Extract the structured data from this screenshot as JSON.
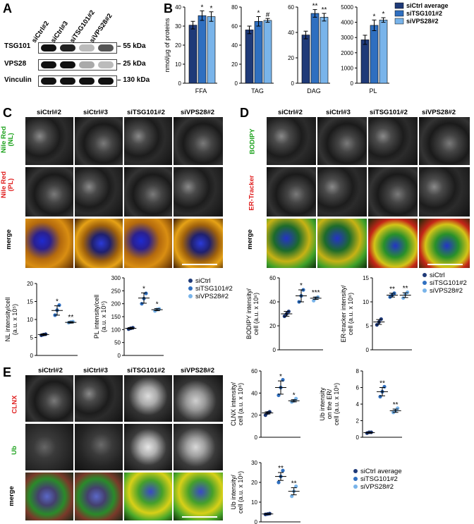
{
  "panels": {
    "A": "A",
    "B": "B",
    "C": "C",
    "D": "D",
    "E": "E"
  },
  "panelA": {
    "lanes": [
      "siCtrl#2",
      "siCtrl#3",
      "siTSG101#2",
      "siVPS28#2"
    ],
    "rows": [
      {
        "protein": "TSG101",
        "marker": "55 kDa",
        "intensity": [
          1.0,
          0.85,
          0.15,
          0.6
        ]
      },
      {
        "protein": "VPS28",
        "marker": "25 kDa",
        "intensity": [
          1.0,
          0.95,
          0.3,
          0.25
        ]
      },
      {
        "protein": "Vinculin",
        "marker": "130 kDa",
        "intensity": [
          1.0,
          1.0,
          1.0,
          1.0
        ]
      }
    ]
  },
  "panelB": {
    "legend": [
      "siCtrl average",
      "siTSG101#2",
      "siVPS28#2"
    ],
    "colors": [
      "#1f3a78",
      "#2f6fc0",
      "#79b4ea"
    ],
    "ylabel": "nmol/µg of proteins"
  },
  "panelC": {
    "columns": [
      "siCtrl#2",
      "siCtrl#3",
      "siTSG101#2",
      "siVPS28#2"
    ],
    "rows": [
      {
        "label1": "Nile Red",
        "label2": "(NL)",
        "color": "#1fa31f"
      },
      {
        "label1": "Nile Red",
        "label2": "(PL)",
        "color": "#e02020"
      },
      {
        "label1": "merge",
        "label2": "",
        "color": "#000000"
      }
    ],
    "legend": [
      "siCtrl",
      "siTSG101#2",
      "siVPS28#2"
    ]
  },
  "panelD": {
    "columns": [
      "siCtrl#2",
      "siCtrl#3",
      "siTSG101#2",
      "siVPS28#2"
    ],
    "rows": [
      {
        "label1": "BODIPY",
        "color": "#1fa31f"
      },
      {
        "label1": "ER-Tracker",
        "color": "#e02020"
      },
      {
        "label1": "merge",
        "color": "#000000"
      }
    ],
    "legend": [
      "siCtrl",
      "siTSG101#2",
      "siVPS28#2"
    ]
  },
  "panelE": {
    "columns": [
      "siCtrl#2",
      "siCtrl#3",
      "siTSG101#2",
      "siVPS28#2"
    ],
    "rows": [
      {
        "label1": "CLNX",
        "color": "#e02020"
      },
      {
        "label1": "Ub",
        "color": "#1fa31f"
      },
      {
        "label1": "merge",
        "color": "#000000"
      }
    ],
    "legend": [
      "siCtrl average",
      "siTSG101#2",
      "siVPS28#2"
    ]
  },
  "chart_data": [
    {
      "id": "B-FFA",
      "type": "bar",
      "categories": [
        "FFA"
      ],
      "series": [
        {
          "name": "siCtrl average",
          "values": [
            30.5
          ],
          "err": [
            2
          ]
        },
        {
          "name": "siTSG101#2",
          "values": [
            35.5
          ],
          "err": [
            2.5
          ]
        },
        {
          "name": "siVPS28#2",
          "values": [
            35
          ],
          "err": [
            2.5
          ]
        }
      ],
      "ylim": [
        0,
        40
      ],
      "ticks": [
        0,
        10,
        20,
        30,
        40
      ],
      "ylabel": "nmol/µg of proteins",
      "xlabel": "FFA",
      "sig": [
        "",
        "*",
        "*"
      ]
    },
    {
      "id": "B-TAG",
      "type": "bar",
      "categories": [
        "TAG"
      ],
      "series": [
        {
          "name": "siCtrl average",
          "values": [
            56
          ],
          "err": [
            4
          ]
        },
        {
          "name": "siTSG101#2",
          "values": [
            65
          ],
          "err": [
            5
          ]
        },
        {
          "name": "siVPS28#2",
          "values": [
            66
          ],
          "err": [
            2
          ]
        }
      ],
      "ylim": [
        0,
        80
      ],
      "ticks": [
        0,
        20,
        40,
        60,
        80
      ],
      "xlabel": "TAG",
      "sig": [
        "",
        "*",
        "#"
      ]
    },
    {
      "id": "B-DAG",
      "type": "bar",
      "categories": [
        "DAG"
      ],
      "series": [
        {
          "name": "siCtrl average",
          "values": [
            38
          ],
          "err": [
            3
          ]
        },
        {
          "name": "siTSG101#2",
          "values": [
            55
          ],
          "err": [
            3
          ]
        },
        {
          "name": "siVPS28#2",
          "values": [
            52
          ],
          "err": [
            3
          ]
        }
      ],
      "ylim": [
        0,
        60
      ],
      "ticks": [
        0,
        20,
        40,
        60
      ],
      "xlabel": "DAG",
      "sig": [
        "",
        "**",
        "**"
      ]
    },
    {
      "id": "B-PL",
      "type": "bar",
      "categories": [
        "PL"
      ],
      "series": [
        {
          "name": "siCtrl average",
          "values": [
            2850
          ],
          "err": [
            300
          ]
        },
        {
          "name": "siTSG101#2",
          "values": [
            3800
          ],
          "err": [
            350
          ]
        },
        {
          "name": "siVPS28#2",
          "values": [
            4150
          ],
          "err": [
            150
          ]
        }
      ],
      "ylim": [
        0,
        5000
      ],
      "ticks": [
        0,
        1000,
        2000,
        3000,
        4000,
        5000
      ],
      "xlabel": "PL",
      "sig": [
        "",
        "*",
        "*"
      ]
    },
    {
      "id": "C-NL",
      "type": "scatter",
      "groups": [
        "siCtrl",
        "siTSG101#2",
        "siVPS28#2"
      ],
      "points": [
        [
          5.6,
          5.8,
          5.9
        ],
        [
          11.2,
          12.6,
          14.0
        ],
        [
          9.1,
          9.3,
          9.4
        ]
      ],
      "means": [
        5.8,
        12.5,
        9.2
      ],
      "sem": [
        0.2,
        1.3,
        0.2
      ],
      "ylim": [
        0,
        20
      ],
      "ticks": [
        0,
        5,
        10,
        15,
        20
      ],
      "ylabel1": "NL intensity/cell",
      "ylabel2": "(a.u. x 10⁵)",
      "sig": [
        "",
        "*",
        "**"
      ]
    },
    {
      "id": "C-PL",
      "type": "scatter",
      "groups": [
        "siCtrl",
        "siTSG101#2",
        "siVPS28#2"
      ],
      "points": [
        [
          102,
          105,
          107
        ],
        [
          200,
          220,
          240
        ],
        [
          172,
          178,
          180
        ]
      ],
      "means": [
        105,
        222,
        177
      ],
      "sem": [
        3,
        20,
        4
      ],
      "ylim": [
        0,
        300
      ],
      "ticks": [
        0,
        50,
        100,
        150,
        200,
        250,
        300
      ],
      "ylabel1": "PL intensity/cell",
      "ylabel2": "(a.u. x 10⁵)",
      "sig": [
        "",
        "*",
        "*"
      ]
    },
    {
      "id": "D-BODIPY",
      "type": "scatter",
      "groups": [
        "siCtrl",
        "siTSG101#2",
        "siVPS28#2"
      ],
      "points": [
        [
          28,
          30,
          32
        ],
        [
          40,
          45,
          50
        ],
        [
          41,
          43,
          44
        ]
      ],
      "means": [
        30,
        45,
        43
      ],
      "sem": [
        2,
        5,
        1
      ],
      "ylim": [
        0,
        60
      ],
      "ticks": [
        0,
        20,
        40,
        60
      ],
      "ylabel1": "BODIPY intensity/",
      "ylabel2": "cell (a.u. x 10⁶)",
      "sig": [
        "",
        "*",
        "***"
      ]
    },
    {
      "id": "D-ER",
      "type": "scatter",
      "groups": [
        "siCtrl",
        "siTSG101#2",
        "siVPS28#2"
      ],
      "points": [
        [
          5.2,
          5.8,
          6.4
        ],
        [
          11.0,
          11.4,
          11.8
        ],
        [
          10.8,
          11.6,
          12.0
        ]
      ],
      "means": [
        5.8,
        11.4,
        11.4
      ],
      "sem": [
        0.5,
        0.4,
        0.5
      ],
      "ylim": [
        0,
        15
      ],
      "ticks": [
        0,
        5,
        10,
        15
      ],
      "ylabel1": "ER-tracker intensity/",
      "ylabel2": "cell (a.u. x 10⁶)",
      "sig": [
        "",
        "**",
        "**"
      ]
    },
    {
      "id": "E-CLNX",
      "type": "scatter",
      "groups": [
        "siCtrl",
        "siTSG101#2",
        "siVPS28#2"
      ],
      "points": [
        [
          20,
          22,
          23
        ],
        [
          38,
          45,
          52
        ],
        [
          32,
          33,
          35
        ]
      ],
      "means": [
        22,
        45,
        33
      ],
      "sem": [
        1,
        6,
        1
      ],
      "ylim": [
        0,
        60
      ],
      "ticks": [
        0,
        20,
        40,
        60
      ],
      "ylabel1": "CLNX intensity/",
      "ylabel2": "cell (a.u. x 10⁶)",
      "sig": [
        "",
        "*",
        "*"
      ]
    },
    {
      "id": "E-UbER",
      "type": "scatter",
      "groups": [
        "siCtrl",
        "siTSG101#2",
        "siVPS28#2"
      ],
      "points": [
        [
          0.5,
          0.6,
          0.6
        ],
        [
          4.9,
          5.5,
          6.1
        ],
        [
          3.0,
          3.2,
          3.5
        ]
      ],
      "means": [
        0.55,
        5.5,
        3.2
      ],
      "sem": [
        0.05,
        0.5,
        0.2
      ],
      "ylim": [
        0,
        8
      ],
      "ticks": [
        0,
        2,
        4,
        6,
        8
      ],
      "ylabel1": "Ub intensity",
      "ylabel2": "on the ER/",
      "ylabel3": "cell (a.u. x 10⁶)",
      "sig": [
        "",
        "**",
        "**"
      ]
    },
    {
      "id": "E-Ub",
      "type": "scatter",
      "groups": [
        "siCtrl",
        "siTSG101#2",
        "siVPS28#2"
      ],
      "points": [
        [
          3.8,
          4.0,
          4.2
        ],
        [
          20,
          23,
          26
        ],
        [
          13,
          15.5,
          18
        ]
      ],
      "means": [
        4,
        23,
        15.5
      ],
      "sem": [
        0.2,
        2,
        1.8
      ],
      "ylim": [
        0,
        30
      ],
      "ticks": [
        0,
        10,
        20,
        30
      ],
      "ylabel1": "Ub intensity/",
      "ylabel2": "cell (a.u. x 10⁶)",
      "sig": [
        "",
        "**",
        "**"
      ]
    }
  ]
}
